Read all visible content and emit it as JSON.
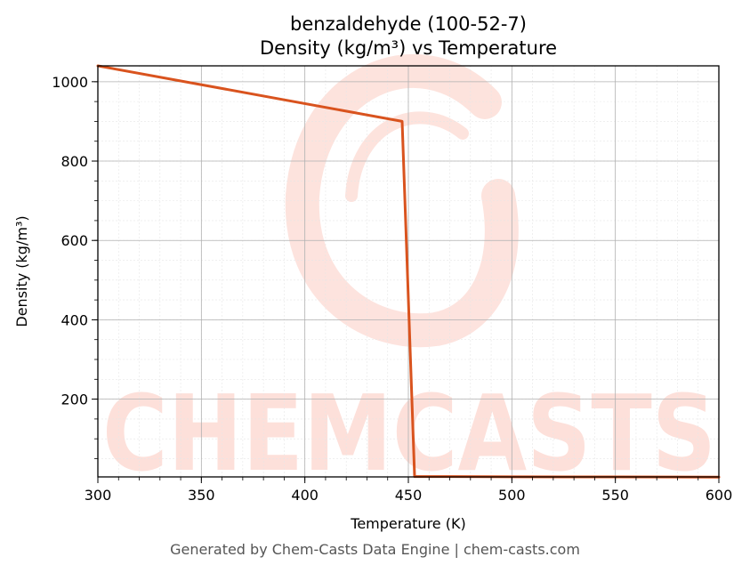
{
  "chart_data": {
    "type": "line",
    "title_line1": "benzaldehyde (100-52-7)",
    "title_line2": "Density (kg/m³) vs Temperature",
    "xlabel": "Temperature (K)",
    "ylabel": "Density (kg/m³)",
    "xlim": [
      300,
      600
    ],
    "ylim": [
      4,
      1040
    ],
    "xticks": [
      300,
      350,
      400,
      450,
      500,
      550,
      600
    ],
    "yticks": [
      200,
      400,
      600,
      800,
      1000
    ],
    "grid": true,
    "series": [
      {
        "color": "#d9531e",
        "x": [
          300,
          447,
          453,
          460,
          500,
          550,
          600
        ],
        "y": [
          1040,
          900,
          5,
          4.8,
          4.3,
          3.9,
          3.6
        ]
      }
    ]
  },
  "watermark": {
    "text": "CHEMCASTS",
    "color": "#fde0da"
  },
  "footer": "Generated by Chem-Casts Data Engine | chem-casts.com"
}
